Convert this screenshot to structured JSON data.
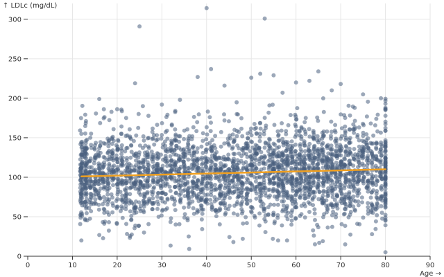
{
  "chart_data": {
    "type": "scatter",
    "title": "",
    "xlabel": "Age →",
    "ylabel": "↑ LDLc (mg/dL)",
    "xlim": [
      0,
      90
    ],
    "ylim": [
      0,
      320
    ],
    "xticks": [
      0,
      10,
      20,
      30,
      40,
      50,
      60,
      70,
      80,
      90
    ],
    "yticks": [
      0,
      50,
      100,
      150,
      200,
      250,
      300
    ],
    "grid": true,
    "legend": "none",
    "colors": {
      "points": "#4a6080",
      "trend": "#f0a020"
    },
    "series": [
      {
        "role": "points",
        "sample_points": [
          [
            12,
            20
          ],
          [
            12,
            155
          ],
          [
            14,
            150
          ],
          [
            16,
            199
          ],
          [
            17,
            143
          ],
          [
            20,
            186
          ],
          [
            22,
            175
          ],
          [
            24,
            219
          ],
          [
            25,
            291
          ],
          [
            26,
            30
          ],
          [
            30,
            192
          ],
          [
            33,
            184
          ],
          [
            36,
            25
          ],
          [
            38,
            227
          ],
          [
            40,
            314
          ],
          [
            41,
            237
          ],
          [
            44,
            216
          ],
          [
            46,
            18
          ],
          [
            50,
            226
          ],
          [
            52,
            231
          ],
          [
            53,
            301
          ],
          [
            55,
            229
          ],
          [
            57,
            207
          ],
          [
            60,
            220
          ],
          [
            63,
            222
          ],
          [
            65,
            234
          ],
          [
            66,
            19
          ],
          [
            68,
            210
          ],
          [
            70,
            218
          ],
          [
            71,
            15
          ],
          [
            75,
            205
          ],
          [
            79,
            200
          ],
          [
            80,
            193
          ],
          [
            80,
            5
          ],
          [
            80,
            185
          ],
          [
            49,
            42
          ],
          [
            56,
            20
          ],
          [
            58,
            20
          ],
          [
            64,
            26
          ],
          [
            77,
            28
          ]
        ]
      },
      {
        "role": "trend",
        "type": "line",
        "x": [
          12,
          80
        ],
        "y": [
          101,
          110
        ]
      }
    ]
  }
}
